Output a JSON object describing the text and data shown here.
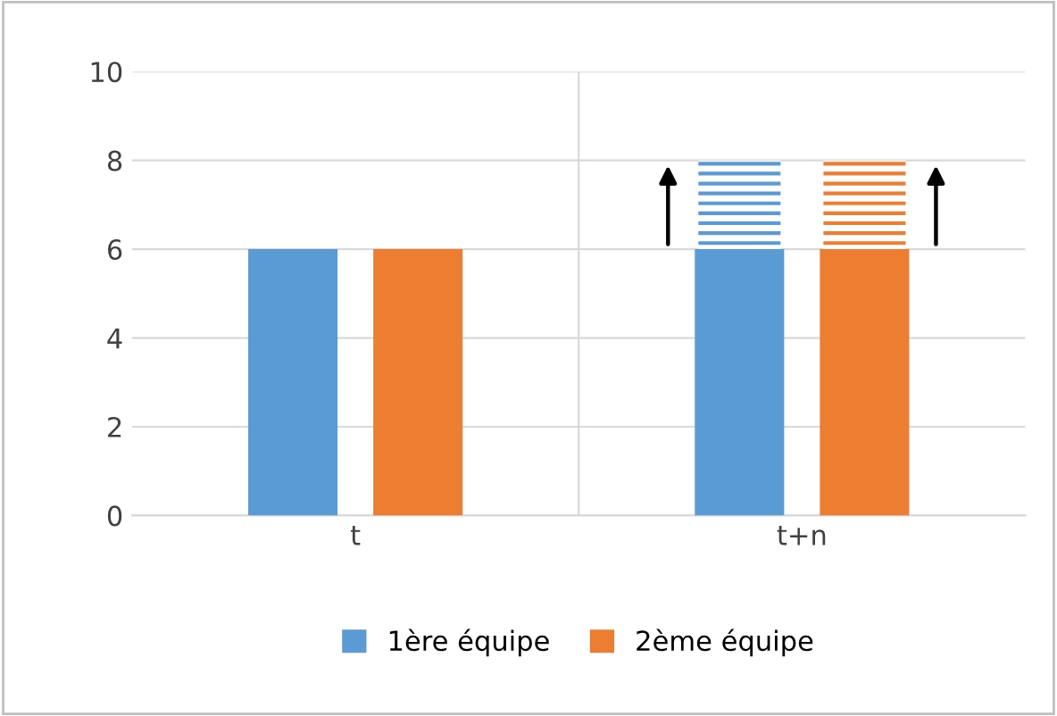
{
  "chart_data": {
    "type": "bar",
    "categories": [
      "t",
      "t+n"
    ],
    "series": [
      {
        "name": "1ère équipe",
        "color": "#5b9bd5",
        "values": [
          6,
          6
        ]
      },
      {
        "name": "2ème équipe",
        "color": "#ed7d31",
        "values": [
          6,
          6
        ]
      },
      {
        "color": "#5b9bd5",
        "values": [
          null,
          2
        ],
        "base": [
          null,
          6
        ]
      },
      {
        "color": "#ed7d31",
        "values": [
          null,
          2
        ],
        "base": [
          null,
          6
        ]
      }
    ],
    "ylim": [
      0,
      10
    ],
    "yticks": [
      0,
      2,
      4,
      6,
      8,
      10
    ],
    "grid": "y",
    "legend": "bottom"
  }
}
